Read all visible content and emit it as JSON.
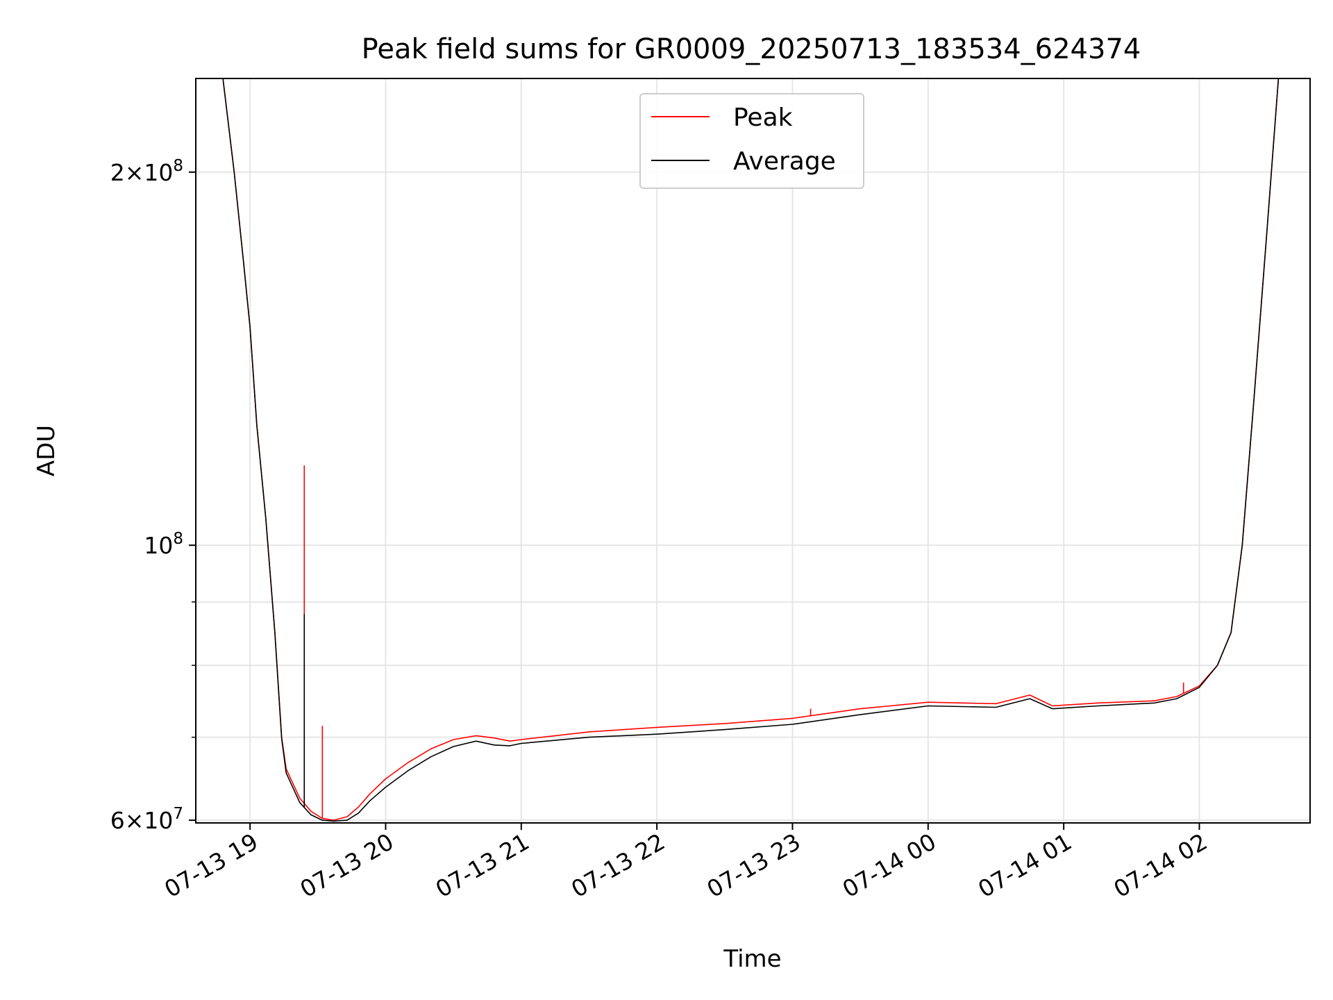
{
  "chart_data": {
    "type": "line",
    "title": "Peak field sums for GR0009_20250713_183534_624374",
    "xlabel": "Time",
    "ylabel": "ADU",
    "yscale": "log",
    "xlim": [
      "2025-07-13 18:36",
      "2025-07-14 02:49"
    ],
    "ylim": [
      59700000,
      238000000
    ],
    "grid": true,
    "legend_position": "upper center",
    "x_ticks": [
      {
        "label": "07-13 19",
        "value": "2025-07-13 19:00"
      },
      {
        "label": "07-13 20",
        "value": "2025-07-13 20:00"
      },
      {
        "label": "07-13 21",
        "value": "2025-07-13 21:00"
      },
      {
        "label": "07-13 22",
        "value": "2025-07-13 22:00"
      },
      {
        "label": "07-13 23",
        "value": "2025-07-13 23:00"
      },
      {
        "label": "07-14 00",
        "value": "2025-07-14 00:00"
      },
      {
        "label": "07-14 01",
        "value": "2025-07-14 01:00"
      },
      {
        "label": "07-14 02",
        "value": "2025-07-14 02:00"
      }
    ],
    "y_ticks": [
      {
        "label_mantissa": "6×10",
        "label_exp": "7",
        "value": 60000000
      },
      {
        "label_mantissa": "10",
        "label_exp": "8",
        "value": 100000000
      },
      {
        "label_mantissa": "2×10",
        "label_exp": "8",
        "value": 200000000
      }
    ],
    "y_minor_gridlines": [
      70000000,
      80000000,
      90000000
    ],
    "series": [
      {
        "name": "Peak",
        "color": "#ff0000",
        "x": [
          "2025-07-13 18:36",
          "2025-07-13 18:48",
          "2025-07-13 18:53",
          "2025-07-13 18:57",
          "2025-07-13 19:00",
          "2025-07-13 19:03",
          "2025-07-13 19:07",
          "2025-07-13 19:11",
          "2025-07-13 19:14",
          "2025-07-13 19:16",
          "2025-07-13 19:22",
          "2025-07-13 19:27",
          "2025-07-13 19:32",
          "2025-07-13 19:37",
          "2025-07-13 19:43",
          "2025-07-13 19:48",
          "2025-07-13 19:53",
          "2025-07-13 20:00",
          "2025-07-13 20:10",
          "2025-07-13 20:20",
          "2025-07-13 20:30",
          "2025-07-13 20:40",
          "2025-07-13 20:48",
          "2025-07-13 20:55",
          "2025-07-13 21:00",
          "2025-07-13 21:30",
          "2025-07-13 22:00",
          "2025-07-13 22:30",
          "2025-07-13 23:00",
          "2025-07-13 23:30",
          "2025-07-14 00:00",
          "2025-07-14 00:30",
          "2025-07-14 00:45",
          "2025-07-14 00:55",
          "2025-07-14 01:15",
          "2025-07-14 01:40",
          "2025-07-14 01:50",
          "2025-07-14 02:00",
          "2025-07-14 02:08",
          "2025-07-14 02:14",
          "2025-07-14 02:19",
          "2025-07-14 02:24",
          "2025-07-14 02:30",
          "2025-07-14 02:35",
          "2025-07-14 02:49"
        ],
        "values": [
          238000000,
          238000000,
          200000000,
          170000000,
          150000000,
          125000000,
          105000000,
          85000000,
          70000000,
          66000000,
          62500000,
          61000000,
          60200000,
          60000000,
          60400000,
          61500000,
          63000000,
          64800000,
          66800000,
          68500000,
          69700000,
          70200000,
          69900000,
          69500000,
          69700000,
          70700000,
          71300000,
          71800000,
          72500000,
          73800000,
          74700000,
          74500000,
          75700000,
          74200000,
          74600000,
          74900000,
          75500000,
          77000000,
          80000000,
          85000000,
          100000000,
          130000000,
          180000000,
          238000000,
          238000000
        ]
      },
      {
        "name": "Average",
        "color": "#000000",
        "x": [
          "2025-07-13 18:36",
          "2025-07-13 18:48",
          "2025-07-13 18:53",
          "2025-07-13 18:57",
          "2025-07-13 19:00",
          "2025-07-13 19:03",
          "2025-07-13 19:07",
          "2025-07-13 19:11",
          "2025-07-13 19:14",
          "2025-07-13 19:16",
          "2025-07-13 19:22",
          "2025-07-13 19:27",
          "2025-07-13 19:32",
          "2025-07-13 19:37",
          "2025-07-13 19:43",
          "2025-07-13 19:48",
          "2025-07-13 19:53",
          "2025-07-13 20:00",
          "2025-07-13 20:10",
          "2025-07-13 20:20",
          "2025-07-13 20:30",
          "2025-07-13 20:40",
          "2025-07-13 20:48",
          "2025-07-13 20:55",
          "2025-07-13 21:00",
          "2025-07-13 21:30",
          "2025-07-13 22:00",
          "2025-07-13 22:30",
          "2025-07-13 23:00",
          "2025-07-13 23:30",
          "2025-07-14 00:00",
          "2025-07-14 00:30",
          "2025-07-14 00:45",
          "2025-07-14 00:55",
          "2025-07-14 01:15",
          "2025-07-14 01:40",
          "2025-07-14 01:50",
          "2025-07-14 02:00",
          "2025-07-14 02:08",
          "2025-07-14 02:14",
          "2025-07-14 02:19",
          "2025-07-14 02:24",
          "2025-07-14 02:30",
          "2025-07-14 02:35",
          "2025-07-14 02:49"
        ],
        "values": [
          238000000,
          238000000,
          200000000,
          170000000,
          150000000,
          125000000,
          105000000,
          85000000,
          69800000,
          65500000,
          62000000,
          60600000,
          60000000,
          59900000,
          60000000,
          60800000,
          62200000,
          63800000,
          65800000,
          67500000,
          68800000,
          69500000,
          69000000,
          68900000,
          69200000,
          70000000,
          70400000,
          71000000,
          71700000,
          73000000,
          74200000,
          74000000,
          75200000,
          73800000,
          74200000,
          74600000,
          75200000,
          76800000,
          80000000,
          85000000,
          100000000,
          130000000,
          180000000,
          238000000,
          238000000
        ]
      }
    ],
    "spikes": [
      {
        "series": "Peak",
        "x": "2025-07-13 19:24",
        "y": 116000000
      },
      {
        "series": "Average",
        "x": "2025-07-13 19:24",
        "y": 88000000
      },
      {
        "series": "Peak",
        "x": "2025-07-13 19:32",
        "y": 71500000
      },
      {
        "series": "Peak",
        "x": "2025-07-13 23:08",
        "y": 73800000
      },
      {
        "series": "Peak",
        "x": "2025-07-14 01:53",
        "y": 77500000
      }
    ]
  }
}
